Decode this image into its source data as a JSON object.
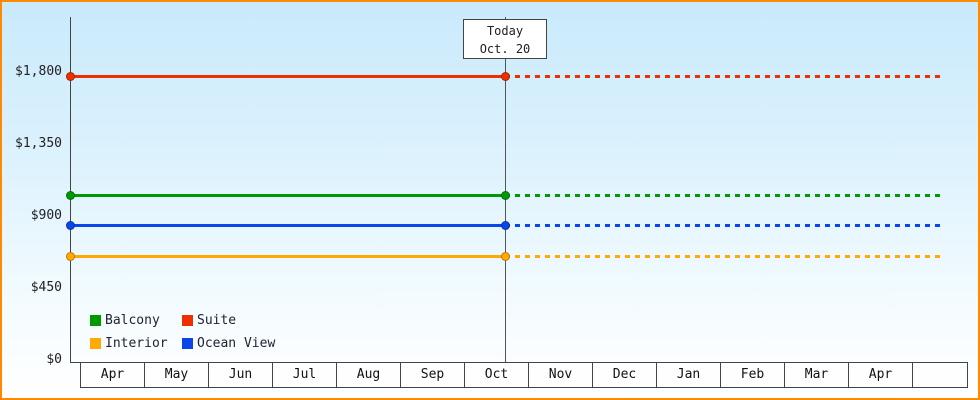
{
  "chart_data": {
    "type": "line",
    "title": "",
    "x_categories": [
      "Apr",
      "May",
      "Jun",
      "Jul",
      "Aug",
      "Sep",
      "Oct",
      "Nov",
      "Dec",
      "Jan",
      "Feb",
      "Mar",
      "Apr"
    ],
    "ylim": [
      0,
      1800
    ],
    "y_ticks": [
      {
        "label": "$1,800",
        "value": 1800
      },
      {
        "label": "$1,350",
        "value": 1350
      },
      {
        "label": "$900",
        "value": 900
      },
      {
        "label": "$450",
        "value": 450
      },
      {
        "label": "$0",
        "value": 0
      }
    ],
    "today": {
      "line1": "Today",
      "line2": "Oct. 20",
      "month_index": 6,
      "month_fraction": 0.645
    },
    "series": [
      {
        "name": "Balcony",
        "value": 1030,
        "color": "#009a00"
      },
      {
        "name": "Suite",
        "value": 1775,
        "color": "#ee2f00"
      },
      {
        "name": "Interior",
        "value": 650,
        "color": "#ffaa00"
      },
      {
        "name": "Ocean View",
        "value": 845,
        "color": "#0a46e8"
      }
    ],
    "style": {
      "solid_segment": "from chart start to today marker",
      "dotted_segment": "from today marker to chart end",
      "markers_at": [
        "start",
        "today"
      ],
      "grid": "off",
      "legend_position": "bottom-left"
    },
    "legend": {
      "items": [
        "Balcony",
        "Suite",
        "Interior",
        "Ocean View"
      ]
    }
  },
  "colors": {
    "border": "#ff8a00",
    "axis": "#444444",
    "background_top": "#c9eafc",
    "background_bottom": "#ffffff"
  }
}
